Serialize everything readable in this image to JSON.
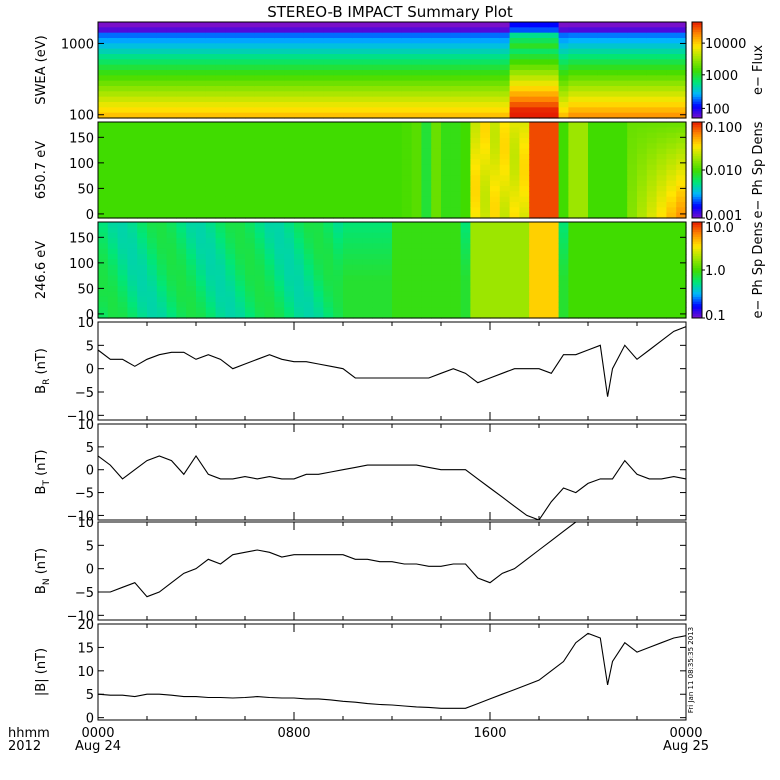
{
  "chart_data": {
    "type": "line",
    "title": "STEREO-B IMPACT Summary Plot",
    "stamp": "Fri Jan 11 08:35:35 2013",
    "x_axis": {
      "row1_label": "hhmm",
      "row2_label": "2012",
      "ticks": [
        {
          "hour": 0,
          "time": "0000",
          "date": "Aug 24"
        },
        {
          "hour": 8,
          "time": "0800",
          "date": ""
        },
        {
          "hour": 16,
          "time": "1600",
          "date": ""
        },
        {
          "hour": 24,
          "time": "0000",
          "date": "Aug 25"
        }
      ],
      "range_hours": [
        0,
        24
      ]
    },
    "spectrograms": [
      {
        "ylabel": "SWEA (eV)",
        "yscale": "log",
        "yrange": [
          90,
          2000
        ],
        "yticks": [
          {
            "value": 100,
            "label": "100"
          },
          {
            "value": 1000,
            "label": "1000"
          }
        ],
        "colorbar_label": "e− Flux",
        "colorbar_scale": "log",
        "colorbar_ticks": [
          "100",
          "1000",
          "10000"
        ],
        "colors": [
          "#7a10c8",
          "#0000ff",
          "#00b4ff",
          "#00e678",
          "#40dc00",
          "#a0e600",
          "#ffe600",
          "#ff8c00",
          "#e61e00"
        ]
      },
      {
        "ylabel": "650.7 eV",
        "yscale": "linear",
        "yrange": [
          -8,
          180
        ],
        "yticks": [
          {
            "value": 0,
            "label": "0"
          },
          {
            "value": 50,
            "label": "50"
          },
          {
            "value": 100,
            "label": "100"
          },
          {
            "value": 150,
            "label": "150"
          }
        ],
        "colorbar_label": "e− Ph Sp Dens",
        "colorbar_scale": "log",
        "colorbar_ticks": [
          "0.001",
          "0.010",
          "0.100"
        ],
        "colors": [
          "#7a10c8",
          "#0000ff",
          "#00b4ff",
          "#00e678",
          "#40dc00",
          "#a0e600",
          "#ffe600",
          "#ff8c00",
          "#e61e00"
        ]
      },
      {
        "ylabel": "246.6 eV",
        "yscale": "linear",
        "yrange": [
          -8,
          180
        ],
        "yticks": [
          {
            "value": 0,
            "label": "0"
          },
          {
            "value": 50,
            "label": "50"
          },
          {
            "value": 100,
            "label": "100"
          },
          {
            "value": 150,
            "label": "150"
          }
        ],
        "colorbar_label": "e− Ph Sp Dens",
        "colorbar_scale": "log",
        "colorbar_ticks": [
          "0.1",
          "1.0",
          "10.0"
        ],
        "colors": [
          "#7a10c8",
          "#0000ff",
          "#00b4ff",
          "#00e678",
          "#40dc00",
          "#a0e600",
          "#ffe600",
          "#ff8c00",
          "#e61e00"
        ]
      }
    ],
    "line_panels": [
      {
        "ylabel": "B",
        "subscript": "R",
        "unit": " (nT)",
        "yrange": [
          -11,
          10
        ],
        "yticks": [
          {
            "value": -10,
            "label": "−10"
          },
          {
            "value": -5,
            "label": "−5"
          },
          {
            "value": 0,
            "label": "0"
          },
          {
            "value": 5,
            "label": "5"
          },
          {
            "value": 10,
            "label": "10"
          }
        ],
        "series": {
          "x": [
            0,
            0.5,
            1,
            1.5,
            2,
            2.5,
            3,
            3.5,
            4,
            4.5,
            5,
            5.5,
            6,
            6.5,
            7,
            7.5,
            8,
            8.5,
            9,
            9.5,
            10,
            10.5,
            11,
            11.5,
            12,
            12.5,
            13,
            13.5,
            14,
            14.5,
            15,
            15.5,
            16,
            16.5,
            17,
            17.5,
            18,
            18.5,
            19,
            19.5,
            20,
            20.5,
            20.8,
            21,
            21.5,
            22,
            22.5,
            23,
            23.5,
            24
          ],
          "y": [
            4,
            2,
            2,
            0.5,
            2,
            3,
            3.5,
            3.5,
            2,
            3,
            2,
            0,
            1,
            2,
            3,
            2,
            1.5,
            1.5,
            1,
            0.5,
            0,
            -2,
            -2,
            -2,
            -2,
            -2,
            -2,
            -2,
            -1,
            0,
            -1,
            -3,
            -2,
            -1,
            0,
            0,
            0,
            -1,
            3,
            3,
            4,
            5,
            -6,
            0,
            5,
            2,
            4,
            6,
            8,
            9
          ]
        }
      },
      {
        "ylabel": "B",
        "subscript": "T",
        "unit": " (nT)",
        "yrange": [
          -11,
          10
        ],
        "yticks": [
          {
            "value": -10,
            "label": "−10"
          },
          {
            "value": -5,
            "label": "−5"
          },
          {
            "value": 0,
            "label": "0"
          },
          {
            "value": 5,
            "label": "5"
          },
          {
            "value": 10,
            "label": "10"
          }
        ],
        "series": {
          "x": [
            0,
            0.5,
            1,
            1.5,
            2,
            2.5,
            3,
            3.5,
            4,
            4.5,
            5,
            5.5,
            6,
            6.5,
            7,
            7.5,
            8,
            8.5,
            9,
            9.5,
            10,
            10.5,
            11,
            11.5,
            12,
            12.5,
            13,
            13.5,
            14,
            14.5,
            15,
            15.5,
            16,
            16.5,
            17,
            17.5,
            18,
            18.5,
            19,
            19.5,
            20,
            20.5,
            21,
            21.5,
            22,
            22.5,
            23,
            23.5,
            24
          ],
          "y": [
            3,
            1,
            -2,
            0,
            2,
            3,
            2,
            -1,
            3,
            -1,
            -2,
            -2,
            -1.5,
            -2,
            -1.5,
            -2,
            -2,
            -1,
            -1,
            -0.5,
            0,
            0.5,
            1,
            1,
            1,
            1,
            1,
            0.5,
            0,
            0,
            0,
            -2,
            -4,
            -6,
            -8,
            -10,
            -11,
            -7,
            -4,
            -5,
            -3,
            -2,
            -2,
            2,
            -1,
            -2,
            -2,
            -1.5,
            -2
          ]
        }
      },
      {
        "ylabel": "B",
        "subscript": "N",
        "unit": " (nT)",
        "yrange": [
          -11,
          10
        ],
        "yticks": [
          {
            "value": -10,
            "label": "−10"
          },
          {
            "value": -5,
            "label": "−5"
          },
          {
            "value": 0,
            "label": "0"
          },
          {
            "value": 5,
            "label": "5"
          },
          {
            "value": 10,
            "label": "10"
          }
        ],
        "series": {
          "x": [
            0,
            0.5,
            1,
            1.5,
            2,
            2.5,
            3,
            3.5,
            4,
            4.5,
            5,
            5.5,
            6,
            6.5,
            7,
            7.5,
            8,
            8.5,
            9,
            9.5,
            10,
            10.5,
            11,
            11.5,
            12,
            12.5,
            13,
            13.5,
            14,
            14.5,
            15,
            15.5,
            16,
            16.5,
            17,
            17.5,
            18,
            18.5,
            19,
            19.5,
            20,
            20.5,
            21
          ],
          "y": [
            -5,
            -5,
            -4,
            -3,
            -6,
            -5,
            -3,
            -1,
            0,
            2,
            1,
            3,
            3.5,
            4,
            3.5,
            2.5,
            3,
            3,
            3,
            3,
            3,
            2,
            2,
            1.5,
            1.5,
            1,
            1,
            0.5,
            0.5,
            1,
            1,
            -2,
            -3,
            -1,
            0,
            2,
            4,
            6,
            8,
            10,
            10,
            10,
            10
          ]
        }
      },
      {
        "ylabel": "|B|",
        "subscript": "",
        "unit": " (nT)",
        "yrange": [
          -0.5,
          20
        ],
        "yticks": [
          {
            "value": 0,
            "label": "0"
          },
          {
            "value": 5,
            "label": "5"
          },
          {
            "value": 10,
            "label": "10"
          },
          {
            "value": 15,
            "label": "15"
          },
          {
            "value": 20,
            "label": "20"
          }
        ],
        "series": {
          "x": [
            0,
            0.5,
            1,
            1.5,
            2,
            2.5,
            3,
            3.5,
            4,
            4.5,
            5,
            5.5,
            6,
            6.5,
            7,
            7.5,
            8,
            8.5,
            9,
            9.5,
            10,
            10.5,
            11,
            11.5,
            12,
            12.5,
            13,
            13.5,
            14,
            14.5,
            15,
            15.5,
            16,
            16.5,
            17,
            17.5,
            18,
            18.5,
            19,
            19.5,
            20,
            20.5,
            20.8,
            21,
            21.5,
            22,
            22.5,
            23,
            23.5,
            24
          ],
          "y": [
            5,
            4.8,
            4.8,
            4.5,
            5,
            5,
            4.8,
            4.5,
            4.5,
            4.3,
            4.3,
            4.2,
            4.3,
            4.5,
            4.3,
            4.2,
            4.2,
            4,
            4,
            3.8,
            3.5,
            3.3,
            3,
            2.8,
            2.7,
            2.5,
            2.3,
            2.2,
            2,
            2,
            2,
            3,
            4,
            5,
            6,
            7,
            8,
            10,
            12,
            16,
            18,
            17,
            7,
            12,
            16,
            14,
            15,
            16,
            17,
            17.5
          ]
        }
      }
    ]
  }
}
